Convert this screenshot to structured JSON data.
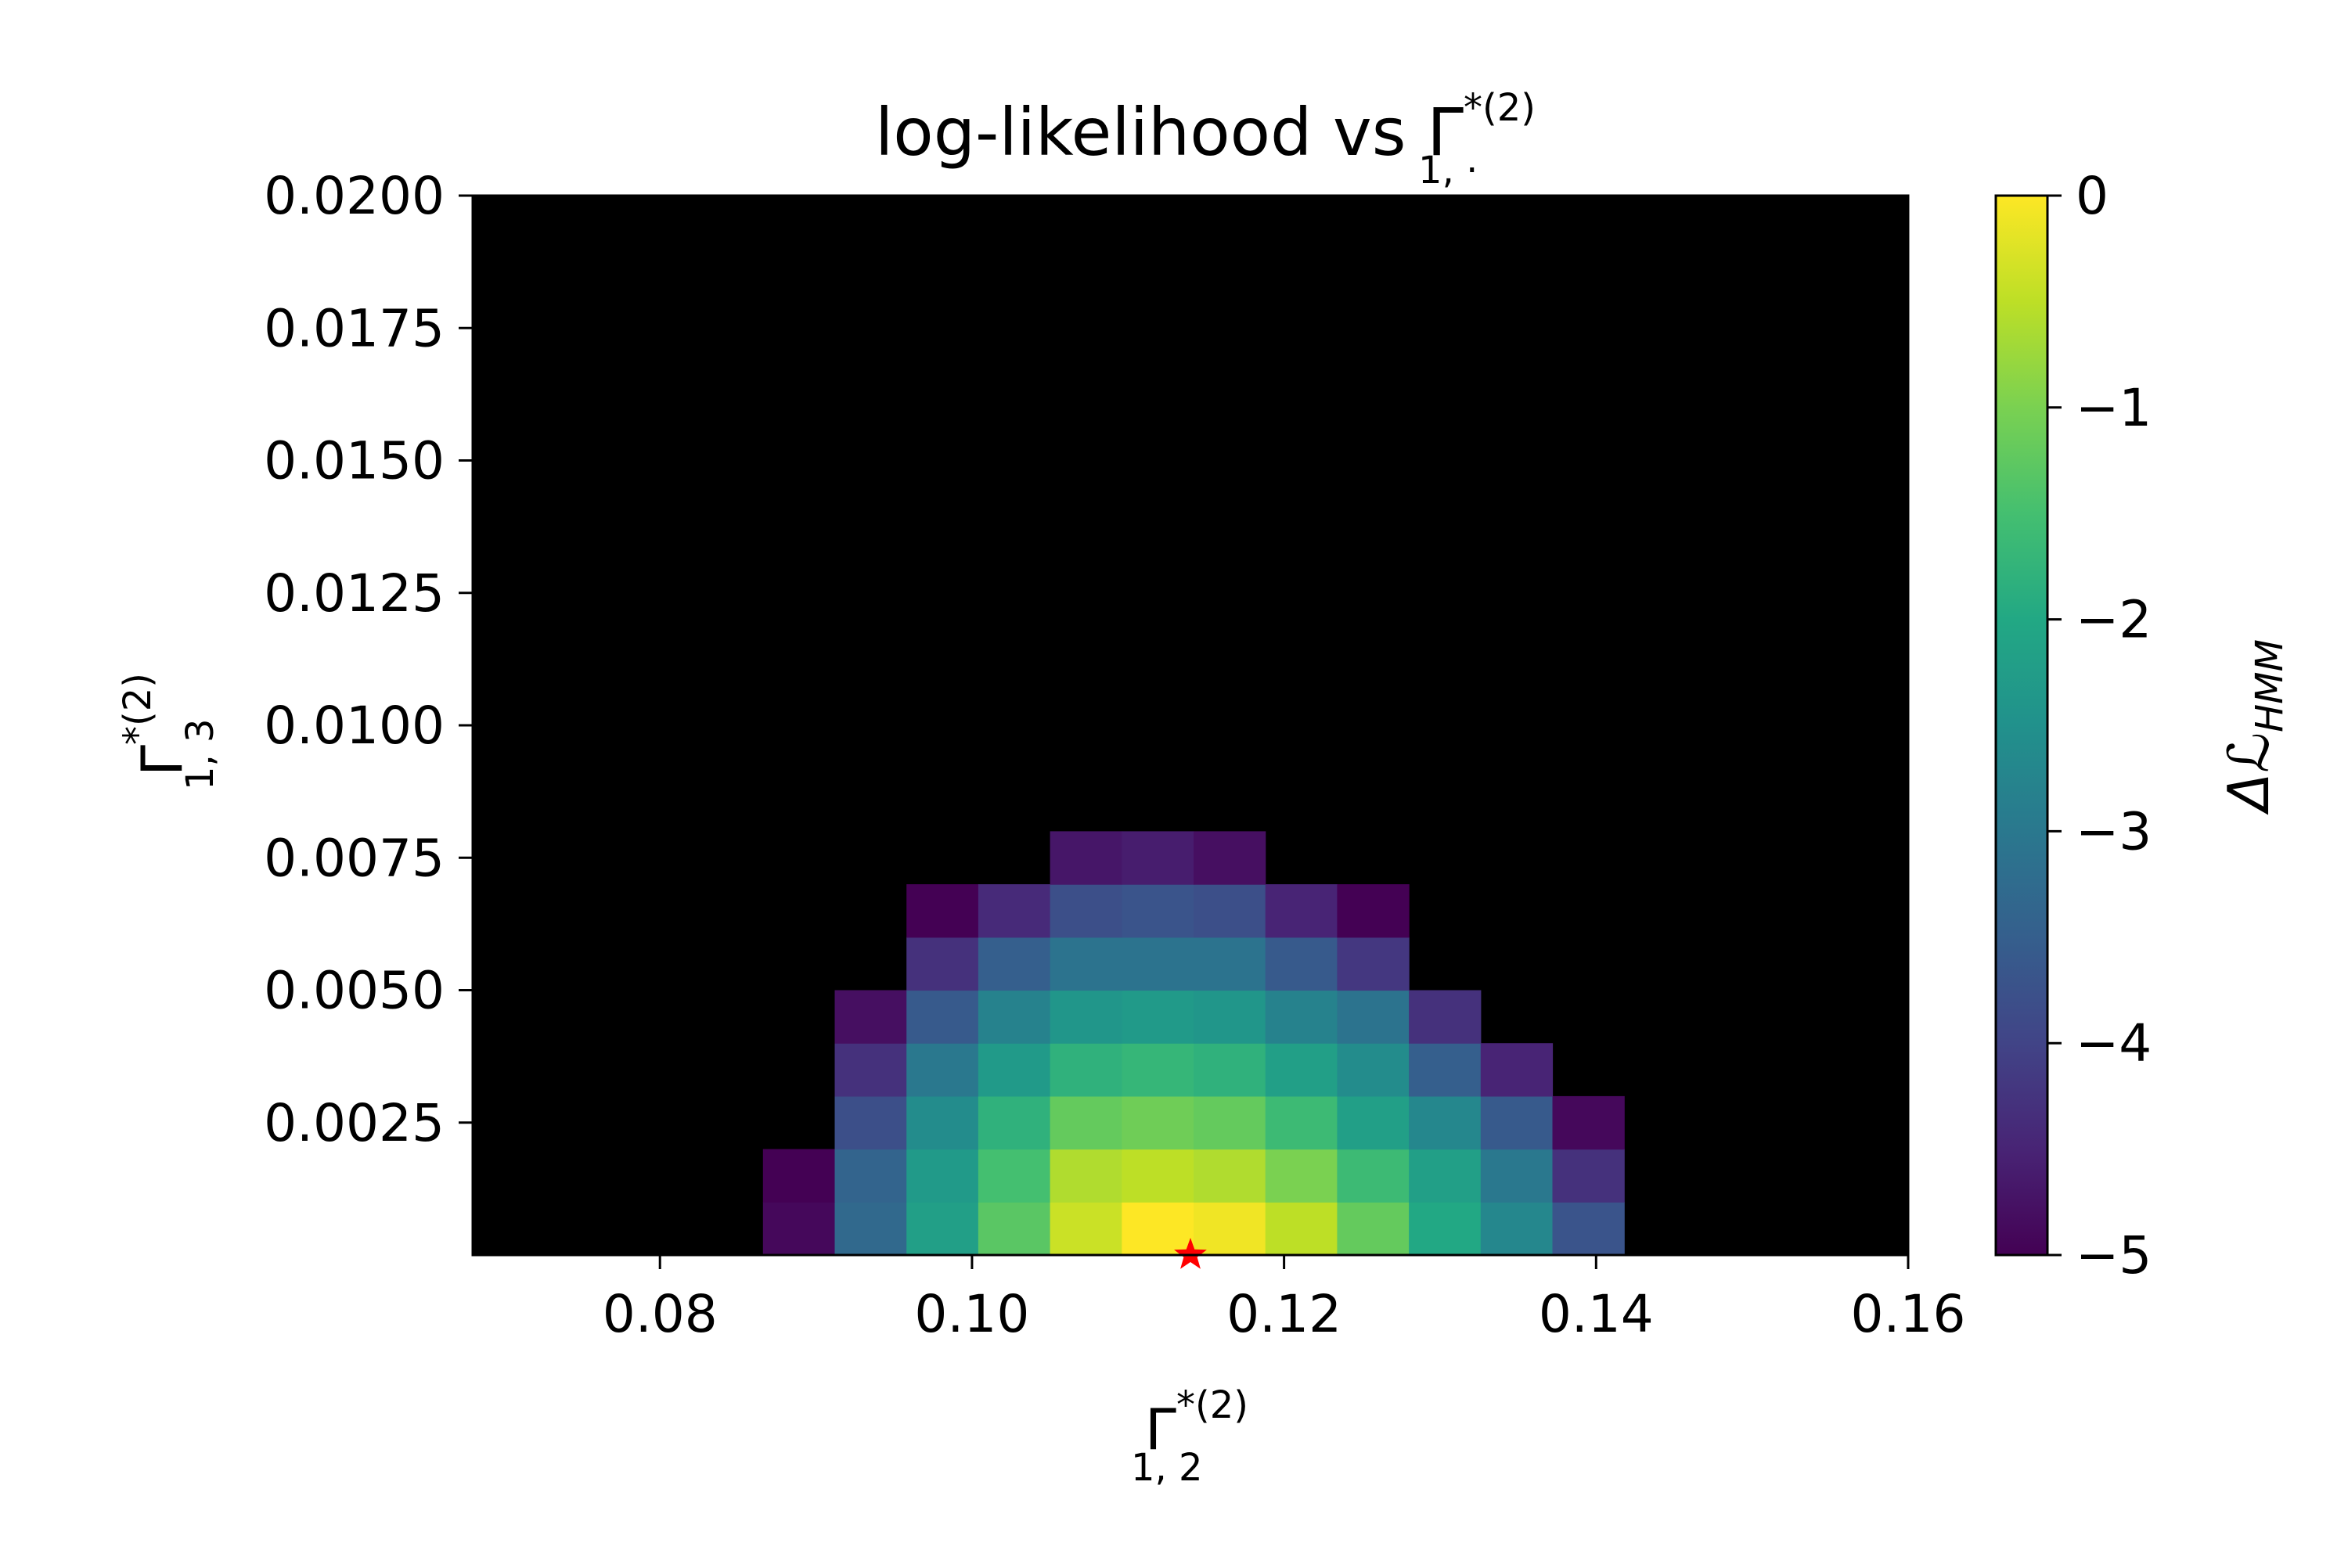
{
  "chart_data": {
    "type": "heatmap",
    "title": "log-likelihood vs Γ*(2) 1,·",
    "title_parts": {
      "main": "log-likelihood vs Γ",
      "sup": "*(2)",
      "sub": "1, ·"
    },
    "xlabel": "Γ*(2) 1,2",
    "xlabel_parts": {
      "main": "Γ",
      "sup": "*(2)",
      "sub": "1, 2"
    },
    "ylabel": "Γ*(2) 1,3",
    "ylabel_parts": {
      "main": "Γ",
      "sup": "*(2)",
      "sub": "1, 3"
    },
    "colorbar_label": "ΔℒHMM",
    "colorbar_label_parts": {
      "main": "Δℒ",
      "sub": "HMM"
    },
    "xlim": [
      0.068,
      0.16
    ],
    "ylim": [
      0.0,
      0.02
    ],
    "color_range": [
      -5,
      0
    ],
    "colormap": "viridis",
    "background_color": "#000000",
    "grid": false,
    "x_ticks": [
      0.08,
      0.1,
      0.12,
      0.14,
      0.16
    ],
    "x_tick_labels": [
      "0.08",
      "0.10",
      "0.12",
      "0.14",
      "0.16"
    ],
    "y_ticks": [
      0.0025,
      0.005,
      0.0075,
      0.01,
      0.0125,
      0.015,
      0.0175,
      0.02
    ],
    "y_tick_labels": [
      "0.0025",
      "0.0050",
      "0.0075",
      "0.0100",
      "0.0125",
      "0.0150",
      "0.0175",
      "0.0200"
    ],
    "colorbar_ticks": [
      0,
      -1,
      -2,
      -3,
      -4,
      -5
    ],
    "colorbar_tick_labels": [
      "0",
      "−1",
      "−2",
      "−3",
      "−4",
      "−5"
    ],
    "cell_width": 0.0046,
    "cell_height": 0.001,
    "cell_x_start": 0.0866,
    "rows": [
      {
        "y0": 0.0,
        "values": [
          -4.9,
          -3.3,
          -2.2,
          -1.3,
          -0.4,
          0.0,
          -0.1,
          -0.5,
          -1.2,
          -2.0,
          -2.7,
          -3.7
        ]
      },
      {
        "y0": 0.001,
        "values": [
          -5.0,
          -3.4,
          -2.3,
          -1.5,
          -0.6,
          -0.5,
          -0.6,
          -1.0,
          -1.6,
          -2.2,
          -3.0,
          -4.3
        ]
      },
      {
        "y0": 0.002,
        "values": [
          null,
          -3.8,
          -2.6,
          -1.8,
          -1.2,
          -1.1,
          -1.2,
          -1.6,
          -2.2,
          -2.7,
          -3.6,
          -4.9
        ]
      },
      {
        "y0": 0.003,
        "values": [
          null,
          -4.3,
          -3.0,
          -2.3,
          -1.8,
          -1.7,
          -1.8,
          -2.2,
          -2.6,
          -3.5,
          -4.5,
          null
        ]
      },
      {
        "y0": 0.004,
        "values": [
          null,
          -4.8,
          -3.6,
          -2.8,
          -2.4,
          -2.3,
          -2.4,
          -2.8,
          -3.1,
          -4.3,
          null,
          null
        ]
      },
      {
        "y0": 0.005,
        "values": [
          null,
          null,
          -4.3,
          -3.5,
          -3.1,
          -3.1,
          -3.1,
          -3.6,
          -4.2,
          null,
          null,
          null
        ]
      },
      {
        "y0": 0.006,
        "values": [
          null,
          null,
          -5.0,
          -4.4,
          -3.8,
          -3.7,
          -3.8,
          -4.5,
          -5.0,
          null,
          null,
          null
        ]
      },
      {
        "y0": 0.007,
        "values": [
          null,
          null,
          null,
          null,
          -4.7,
          -4.6,
          -4.8,
          null,
          null,
          null,
          null,
          null
        ]
      }
    ],
    "marker": {
      "x": 0.114,
      "y": 0.0,
      "shape": "star",
      "color": "#ff0000"
    }
  }
}
